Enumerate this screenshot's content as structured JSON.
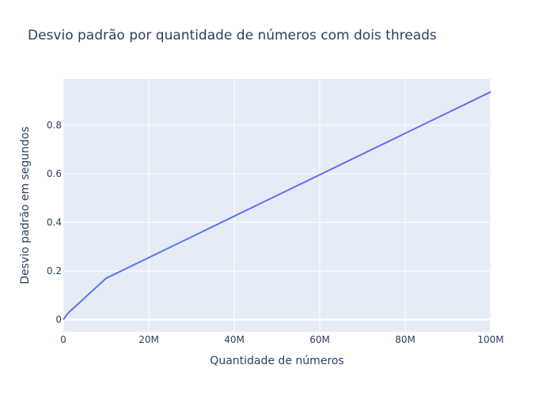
{
  "chart_data": {
    "type": "line",
    "title": "Desvio padrão por quantidade de números com dois threads",
    "xlabel": "Quantidade de números",
    "ylabel": "Desvio padrão em segundos",
    "xlim": [
      0,
      100000000
    ],
    "ylim": [
      -0.05,
      0.99
    ],
    "x_ticks": [
      {
        "value": 0,
        "label": "0"
      },
      {
        "value": 20000000,
        "label": "20M"
      },
      {
        "value": 40000000,
        "label": "40M"
      },
      {
        "value": 60000000,
        "label": "60M"
      },
      {
        "value": 80000000,
        "label": "80M"
      },
      {
        "value": 100000000,
        "label": "100M"
      }
    ],
    "y_ticks": [
      {
        "value": 0,
        "label": "0"
      },
      {
        "value": 0.2,
        "label": "0.2"
      },
      {
        "value": 0.4,
        "label": "0.4"
      },
      {
        "value": 0.6,
        "label": "0.6"
      },
      {
        "value": 0.8,
        "label": "0.8"
      }
    ],
    "grid": true,
    "series": [
      {
        "color": "#636efa",
        "x": [
          0,
          1000000,
          10000000,
          100000000
        ],
        "y": [
          0.0,
          0.025,
          0.17,
          0.937
        ]
      }
    ],
    "colors": {
      "plot_background": "#e5ecf6",
      "grid": "#ffffff",
      "text": "#2a3f5f"
    }
  }
}
